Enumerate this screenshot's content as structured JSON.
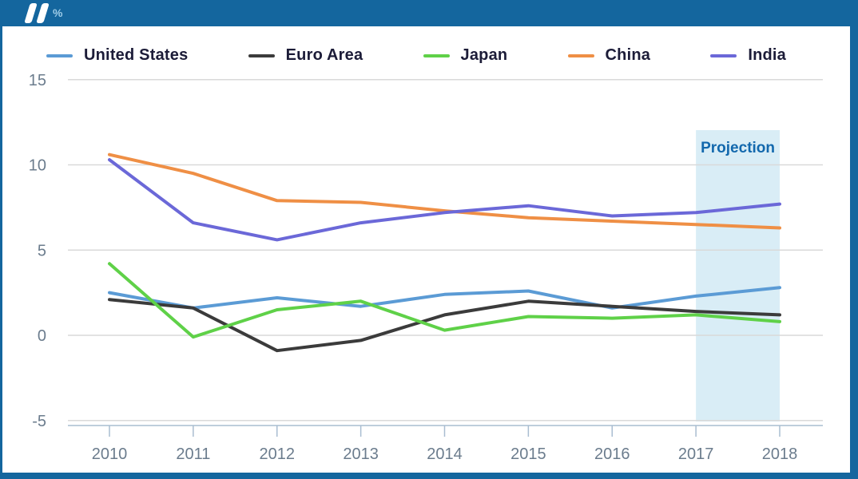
{
  "header": {
    "unit_label": "%",
    "logo_icon": "double-slash-logo-icon"
  },
  "chart_data": {
    "type": "line",
    "title": "",
    "xlabel": "",
    "ylabel": "%",
    "x": [
      2010,
      2011,
      2012,
      2013,
      2014,
      2015,
      2016,
      2017,
      2018
    ],
    "series": [
      {
        "name": "United States",
        "color": "#5b9bd5",
        "values": [
          2.5,
          1.6,
          2.2,
          1.7,
          2.4,
          2.6,
          1.6,
          2.3,
          2.8
        ]
      },
      {
        "name": "Euro Area",
        "color": "#3b3b3b",
        "values": [
          2.1,
          1.6,
          -0.9,
          -0.3,
          1.2,
          2.0,
          1.7,
          1.4,
          1.2
        ]
      },
      {
        "name": "Japan",
        "color": "#5fd148",
        "values": [
          4.2,
          -0.1,
          1.5,
          2.0,
          0.3,
          1.1,
          1.0,
          1.2,
          0.8
        ]
      },
      {
        "name": "China",
        "color": "#ef8f45",
        "values": [
          10.6,
          9.5,
          7.9,
          7.8,
          7.3,
          6.9,
          6.7,
          6.5,
          6.3
        ]
      },
      {
        "name": "India",
        "color": "#6b68d8",
        "values": [
          10.3,
          6.6,
          5.6,
          6.6,
          7.2,
          7.6,
          7.0,
          7.2,
          7.7
        ]
      }
    ],
    "yticks": [
      15,
      10,
      5,
      0,
      -5
    ],
    "ylim": [
      -5,
      15
    ],
    "grid": true,
    "legend_position": "top",
    "projection": {
      "label": "Projection",
      "x_start": 2017,
      "x_end": 2018
    }
  },
  "colors": {
    "frame_blue": "#14669e",
    "projection_band": "#d9edf6",
    "projection_text": "#1268ad",
    "gridline": "#d9d9d9",
    "axis_line": "#a9bdd1",
    "tick_label": "#6b7c8d",
    "legend_text": "#1c1c38",
    "unit_label": "#9fcde8"
  }
}
